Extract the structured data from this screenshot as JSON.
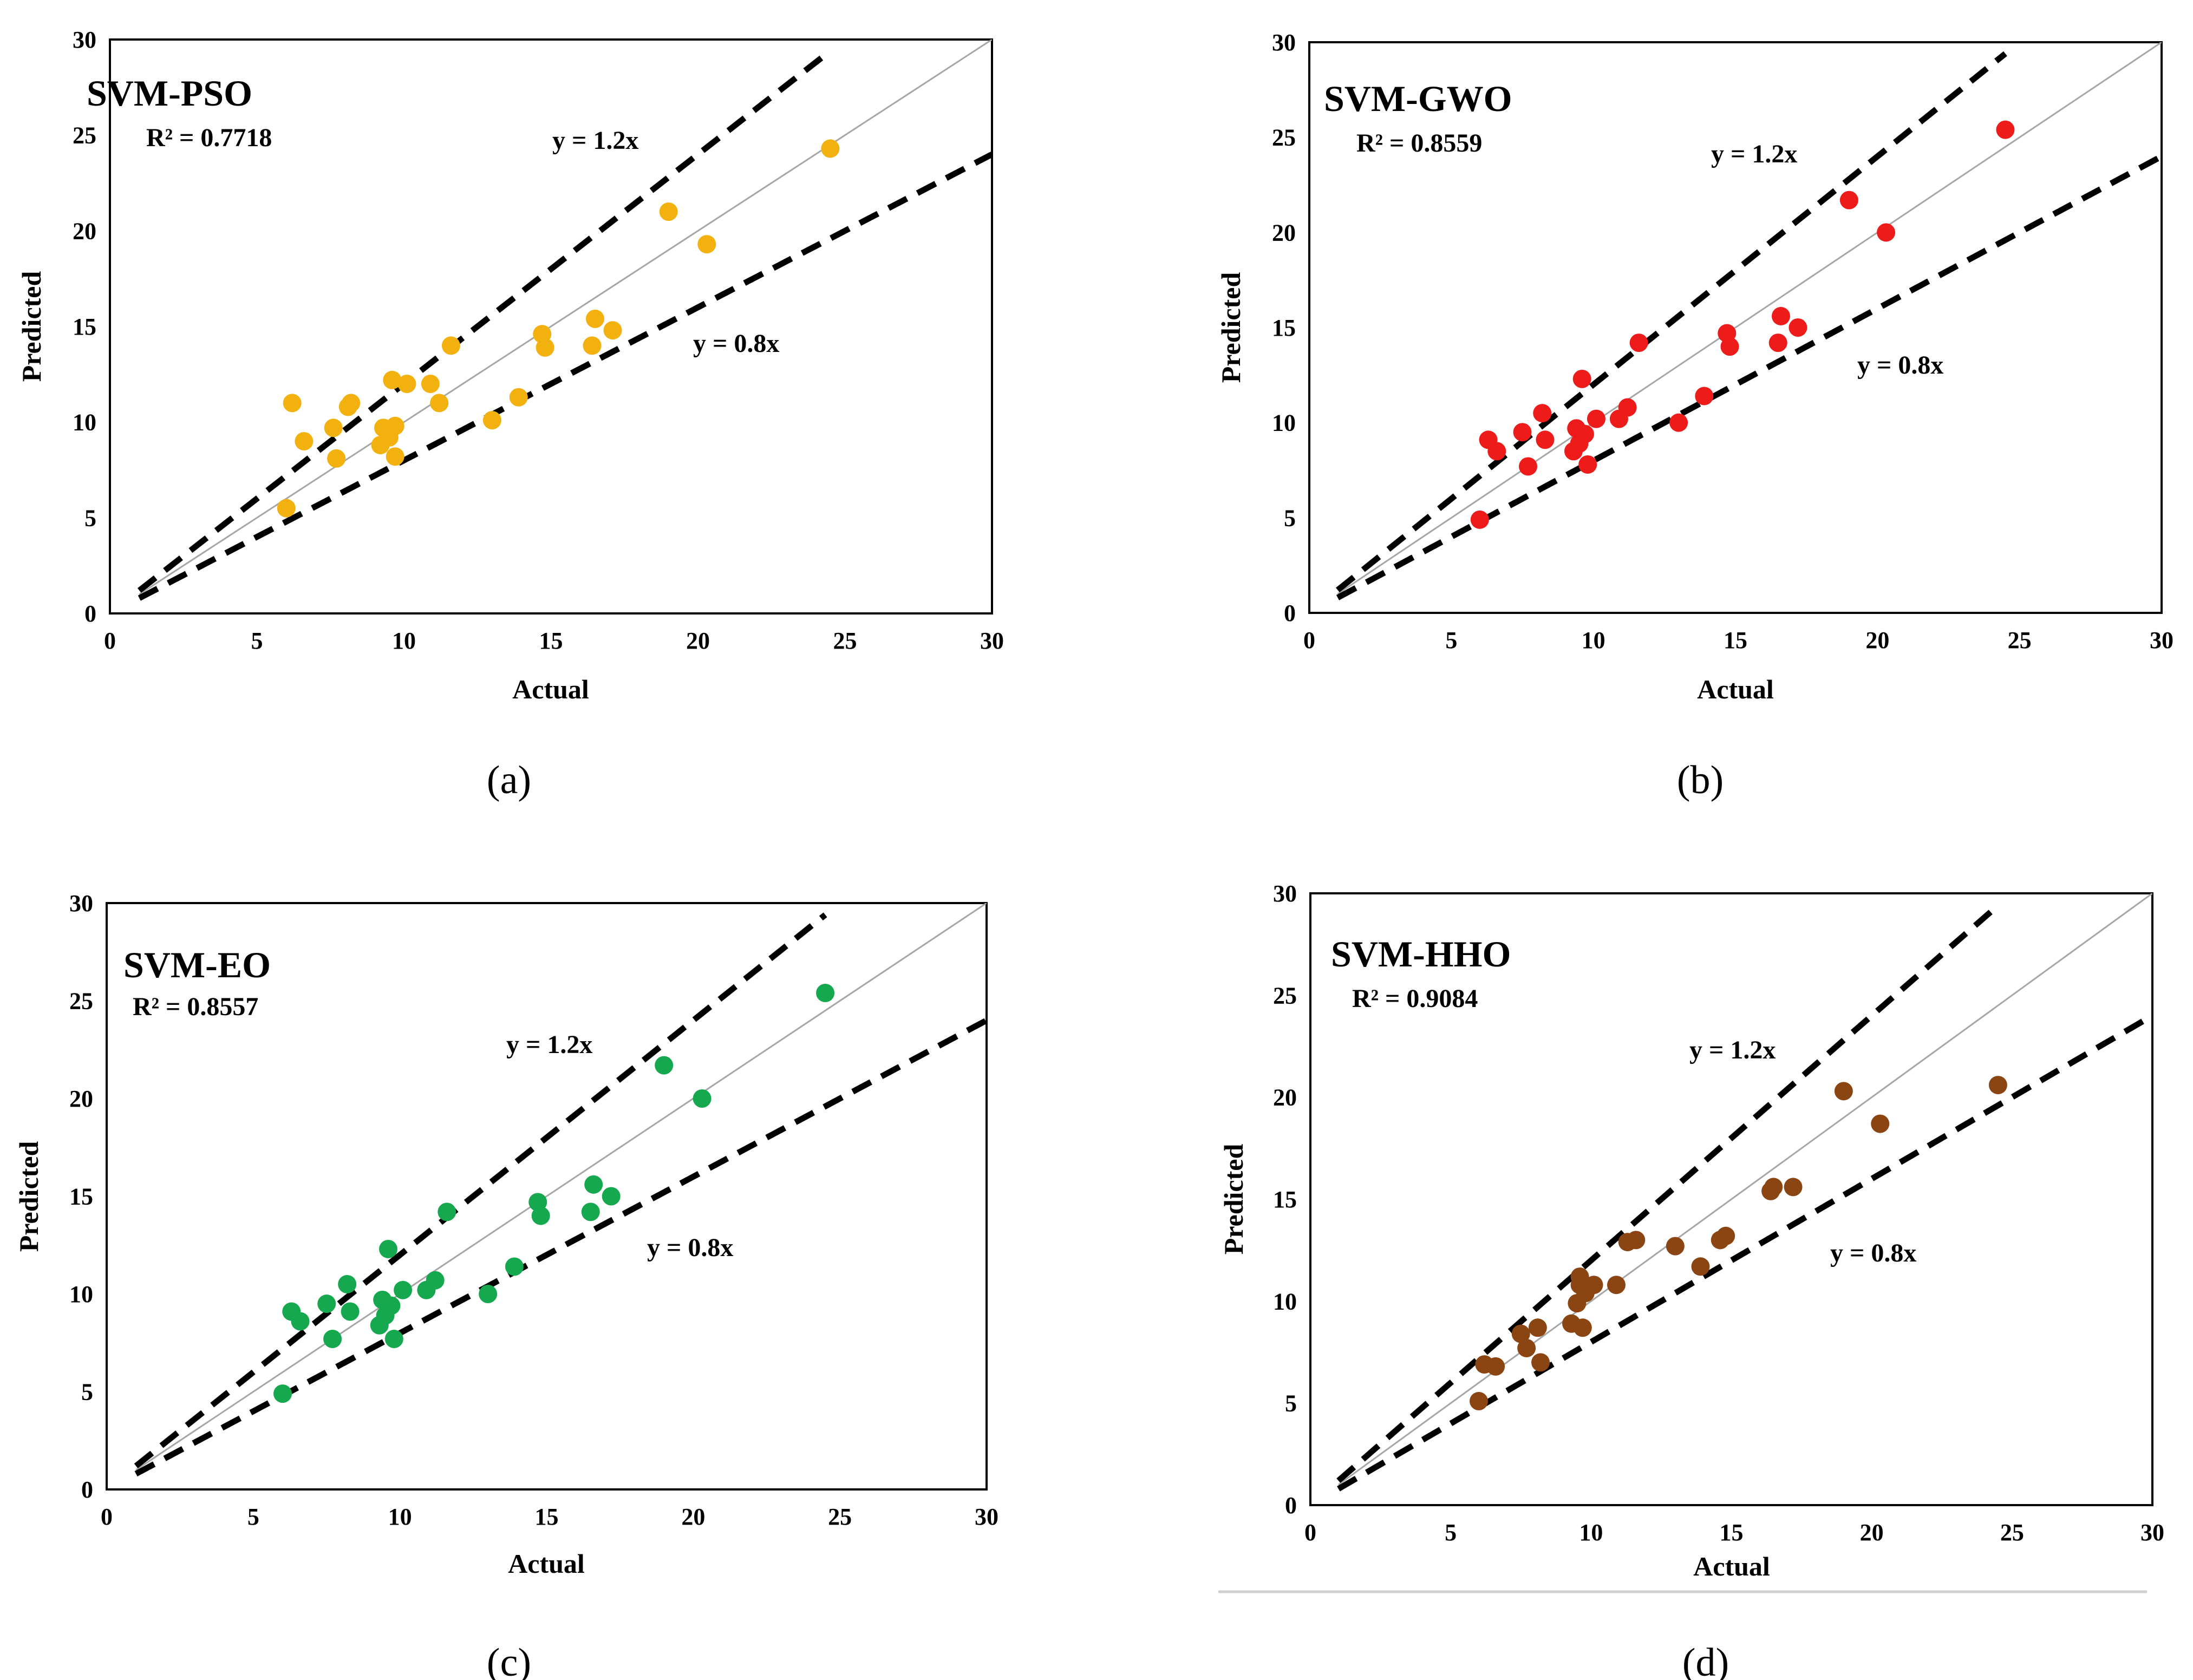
{
  "figure": {
    "bottom_rule": true
  },
  "chart_data": [
    {
      "type": "scatter",
      "title": "SVM-PSO",
      "r2_label": "R² = 0.7718",
      "caption": "(a)",
      "xlabel": "Actual",
      "ylabel": "Predicted",
      "xlim": [
        0,
        30
      ],
      "ylim": [
        0,
        30
      ],
      "ticks": [
        "0",
        "5",
        "10",
        "15",
        "20",
        "25",
        "30"
      ],
      "marker_color": "#f2b10e",
      "upper_label": "y = 1.2x",
      "lower_label": "y = 0.8x",
      "upper_slope": 1.2,
      "lower_slope": 0.8,
      "x": [
        6.0,
        6.2,
        6.6,
        7.6,
        7.7,
        8.1,
        8.2,
        9.2,
        9.3,
        9.5,
        9.6,
        9.7,
        9.7,
        10.1,
        10.9,
        11.2,
        11.6,
        13.0,
        13.9,
        14.7,
        14.8,
        16.4,
        16.5,
        17.1,
        19.0,
        20.3,
        24.5
      ],
      "y": [
        5.5,
        11.0,
        9.0,
        9.7,
        8.1,
        10.8,
        11.0,
        8.8,
        9.7,
        9.2,
        12.2,
        9.8,
        8.2,
        12.0,
        12.0,
        11.0,
        14.0,
        10.1,
        11.3,
        14.6,
        13.9,
        14.0,
        15.4,
        14.8,
        21.0,
        19.3,
        24.3
      ]
    },
    {
      "type": "scatter",
      "title": "SVM-GWO",
      "r2_label": "R² = 0.8559",
      "caption": "(b)",
      "xlabel": "Actual",
      "ylabel": "Predicted",
      "xlim": [
        0,
        30
      ],
      "ylim": [
        0,
        30
      ],
      "ticks": [
        "0",
        "5",
        "10",
        "15",
        "20",
        "25",
        "30"
      ],
      "marker_color": "#ee1b1b",
      "upper_label": "y = 1.2x",
      "lower_label": "y = 0.8x",
      "upper_slope": 1.2,
      "lower_slope": 0.8,
      "x": [
        6.0,
        6.3,
        6.6,
        7.5,
        7.7,
        8.2,
        8.3,
        9.3,
        9.4,
        9.5,
        9.6,
        9.7,
        9.8,
        10.1,
        10.9,
        11.2,
        11.6,
        13.0,
        13.9,
        14.7,
        14.8,
        16.5,
        16.6,
        17.2,
        19.0,
        20.3,
        24.5
      ],
      "y": [
        4.9,
        9.1,
        8.5,
        9.5,
        7.7,
        10.5,
        9.1,
        8.5,
        9.7,
        8.9,
        12.3,
        9.4,
        7.8,
        10.2,
        10.2,
        10.8,
        14.2,
        10.0,
        11.4,
        14.7,
        14.0,
        14.2,
        15.6,
        15.0,
        21.7,
        20.0,
        25.4
      ]
    },
    {
      "type": "scatter",
      "title": "SVM-EO",
      "r2_label": "R² = 0.8557",
      "caption": "(c)",
      "xlabel": "Actual",
      "ylabel": "Predicted",
      "xlim": [
        0,
        30
      ],
      "ylim": [
        0,
        30
      ],
      "ticks": [
        "0",
        "5",
        "10",
        "15",
        "20",
        "25",
        "30"
      ],
      "marker_color": "#15a84f",
      "upper_label": "y = 1.2x",
      "lower_label": "y = 0.8x",
      "upper_slope": 1.2,
      "lower_slope": 0.8,
      "x": [
        6.0,
        6.3,
        6.6,
        7.5,
        7.7,
        8.2,
        8.3,
        9.3,
        9.4,
        9.5,
        9.6,
        9.7,
        9.8,
        10.1,
        10.9,
        11.2,
        11.6,
        13.0,
        13.9,
        14.7,
        14.8,
        16.5,
        16.6,
        17.2,
        19.0,
        20.3,
        24.5
      ],
      "y": [
        4.9,
        9.1,
        8.6,
        9.5,
        7.7,
        10.5,
        9.1,
        8.4,
        9.7,
        8.9,
        12.3,
        9.4,
        7.7,
        10.2,
        10.2,
        10.7,
        14.2,
        10.0,
        11.4,
        14.7,
        14.0,
        14.2,
        15.6,
        15.0,
        21.7,
        20.0,
        25.4
      ]
    },
    {
      "type": "scatter",
      "title": "SVM-HHO",
      "r2_label": "R² = 0.9084",
      "caption": "(d)",
      "xlabel": "Actual",
      "ylabel": "Predicted",
      "xlim": [
        0,
        30
      ],
      "ylim": [
        0,
        30
      ],
      "ticks": [
        "0",
        "5",
        "10",
        "15",
        "20",
        "25",
        "30"
      ],
      "marker_color": "#8b4513",
      "upper_label": "y = 1.2x",
      "lower_label": "y = 0.8x",
      "upper_slope": 1.2,
      "lower_slope": 0.8,
      "x": [
        6.0,
        6.2,
        6.6,
        7.5,
        7.7,
        8.1,
        8.2,
        9.3,
        9.5,
        9.6,
        9.6,
        9.7,
        9.8,
        10.1,
        10.9,
        11.3,
        11.6,
        13.0,
        13.9,
        14.6,
        14.8,
        16.4,
        16.5,
        17.2,
        19.0,
        20.3,
        24.5
      ],
      "y": [
        5.1,
        6.9,
        6.8,
        8.4,
        7.7,
        8.7,
        7.0,
        8.9,
        9.9,
        11.2,
        10.8,
        8.7,
        10.4,
        10.8,
        10.8,
        12.9,
        13.0,
        12.7,
        11.7,
        13.0,
        13.2,
        15.4,
        15.6,
        15.6,
        20.3,
        18.7,
        20.6
      ]
    }
  ]
}
